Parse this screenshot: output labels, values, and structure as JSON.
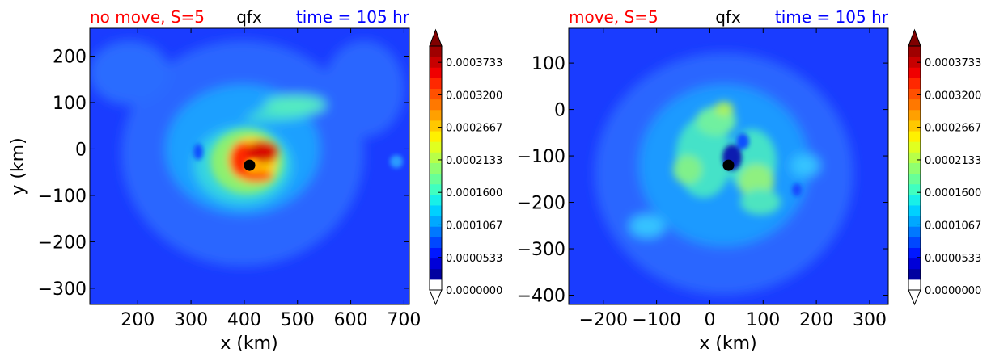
{
  "chart_data": [
    {
      "type": "heatmap",
      "title_left": "no move, S=5",
      "title_center": "qfx",
      "title_right": "time = 105 hr",
      "xlabel": "x (km)",
      "ylabel": "y (km)",
      "xlim": [
        110,
        710
      ],
      "ylim": [
        -335,
        260
      ],
      "xticks": [
        200,
        300,
        400,
        500,
        600,
        700
      ],
      "yticks": [
        200,
        100,
        0,
        -100,
        -200,
        -300
      ],
      "center_marker": [
        410,
        -35
      ],
      "colorbar": {
        "min": 0.0,
        "max": 0.0004,
        "ticks": [
          "0.0003733",
          "0.0003200",
          "0.0002667",
          "0.0002133",
          "0.0001600",
          "0.0001067",
          "0.0000533",
          "0.0000000"
        ],
        "extend": "both"
      }
    },
    {
      "type": "heatmap",
      "title_left": "move, S=5",
      "title_center": "qfx",
      "title_right": "time = 105 hr",
      "xlabel": "x (km)",
      "ylabel": "",
      "xlim": [
        -265,
        335
      ],
      "ylim": [
        -420,
        175
      ],
      "xticks": [
        -200,
        -100,
        0,
        100,
        200,
        300
      ],
      "yticks": [
        100,
        0,
        -100,
        -200,
        -300,
        -400
      ],
      "center_marker": [
        35,
        -120
      ],
      "colorbar": {
        "min": 0.0,
        "max": 0.0004,
        "ticks": [
          "0.0003733",
          "0.0003200",
          "0.0002667",
          "0.0002133",
          "0.0001600",
          "0.0001067",
          "0.0000533",
          "0.0000000"
        ],
        "extend": "both"
      }
    }
  ]
}
